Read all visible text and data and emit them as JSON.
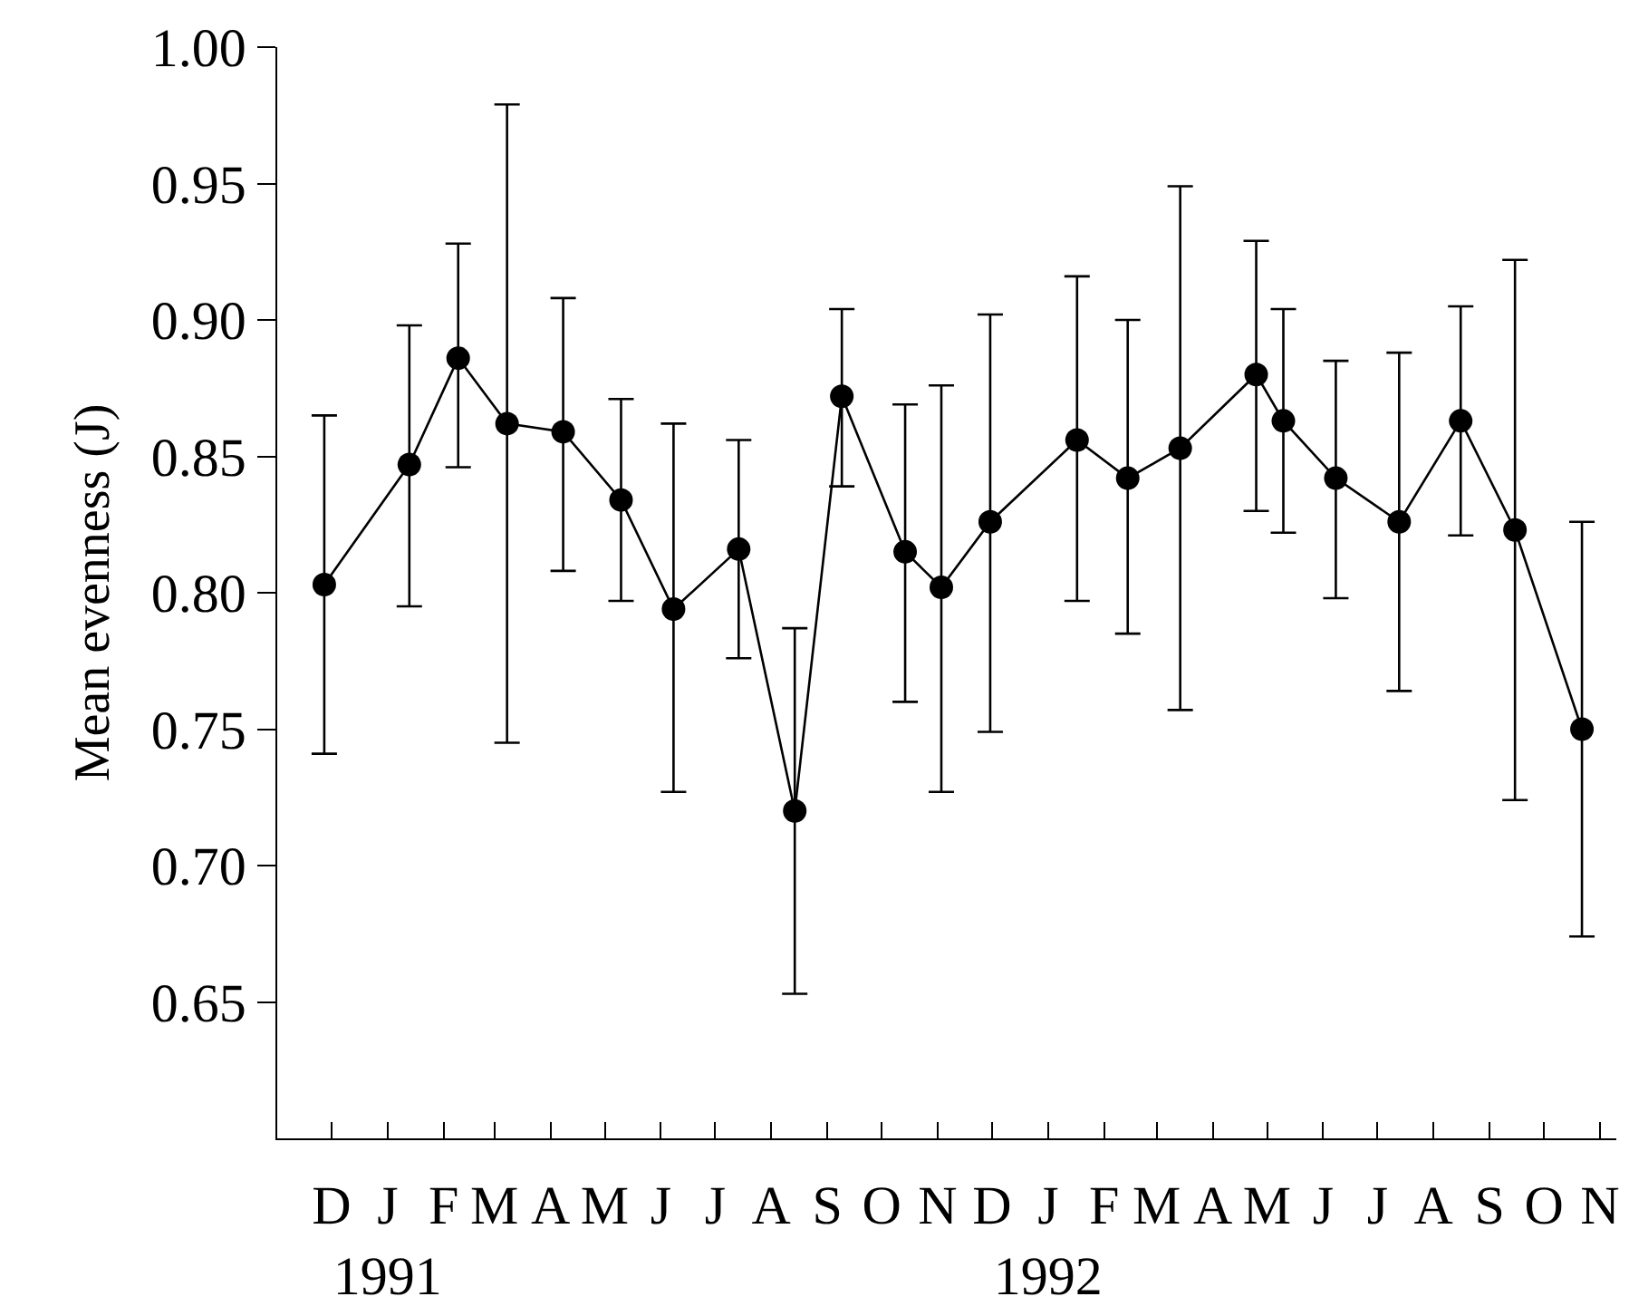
{
  "chart_data": {
    "type": "line",
    "ylabel": "Mean evenness (J)",
    "x": [
      "1990-11-27",
      "1991-01-13",
      "1991-02-09",
      "1991-03-08",
      "1991-04-08",
      "1991-05-10",
      "1991-06-08",
      "1991-07-14",
      "1991-08-14",
      "1991-09-09",
      "1991-10-14",
      "1991-11-03",
      "1991-11-30",
      "1992-01-17",
      "1992-02-14",
      "1992-03-14",
      "1992-04-25",
      "1992-05-10",
      "1992-06-08",
      "1992-07-13",
      "1992-08-16",
      "1992-09-15",
      "1992-10-22"
    ],
    "series": [
      {
        "color": "#000000",
        "values": [
          0.803,
          0.847,
          0.886,
          0.862,
          0.859,
          0.834,
          0.794,
          0.816,
          0.72,
          0.872,
          0.815,
          0.802,
          0.826,
          0.856,
          0.842,
          0.853,
          0.88,
          0.863,
          0.842,
          0.826,
          0.863,
          0.823,
          0.75
        ],
        "errors": [
          [
            0.741,
            0.865
          ],
          [
            0.795,
            0.898
          ],
          [
            0.846,
            0.928
          ],
          [
            0.745,
            0.979
          ],
          [
            0.808,
            0.908
          ],
          [
            0.797,
            0.871
          ],
          [
            0.727,
            0.862
          ],
          [
            0.776,
            0.856
          ],
          [
            0.653,
            0.787
          ],
          [
            0.839,
            0.904
          ],
          [
            0.76,
            0.869
          ],
          [
            0.727,
            0.876
          ],
          [
            0.749,
            0.902
          ],
          [
            0.797,
            0.916
          ],
          [
            0.785,
            0.9
          ],
          [
            0.757,
            0.949
          ],
          [
            0.83,
            0.929
          ],
          [
            0.822,
            0.904
          ],
          [
            0.798,
            0.885
          ],
          [
            0.764,
            0.888
          ],
          [
            0.821,
            0.905
          ],
          [
            0.724,
            0.922
          ],
          [
            0.674,
            0.826
          ]
        ]
      }
    ],
    "xlim": [
      "1990-11-01",
      "1992-11-10"
    ],
    "xticks": [
      {
        "value": "1990-12-01",
        "label": "D"
      },
      {
        "value": "1991-01-01",
        "label": "J\n1991"
      },
      {
        "value": "1991-02-01",
        "label": "F"
      },
      {
        "value": "1991-03-01",
        "label": "M"
      },
      {
        "value": "1991-04-01",
        "label": "A"
      },
      {
        "value": "1991-05-01",
        "label": "M"
      },
      {
        "value": "1991-06-01",
        "label": "J"
      },
      {
        "value": "1991-07-01",
        "label": "J"
      },
      {
        "value": "1991-08-01",
        "label": "A"
      },
      {
        "value": "1991-09-01",
        "label": "S"
      },
      {
        "value": "1991-10-01",
        "label": "O"
      },
      {
        "value": "1991-11-01",
        "label": "N"
      },
      {
        "value": "1991-12-01",
        "label": "D"
      },
      {
        "value": "1992-01-01",
        "label": "J\n1992"
      },
      {
        "value": "1992-02-01",
        "label": "F"
      },
      {
        "value": "1992-03-01",
        "label": "M"
      },
      {
        "value": "1992-04-01",
        "label": "A"
      },
      {
        "value": "1992-05-01",
        "label": "M"
      },
      {
        "value": "1992-06-01",
        "label": "J"
      },
      {
        "value": "1992-07-01",
        "label": "J"
      },
      {
        "value": "1992-08-01",
        "label": "A"
      },
      {
        "value": "1992-09-01",
        "label": "S"
      },
      {
        "value": "1992-10-01",
        "label": "O"
      },
      {
        "value": "1992-11-01",
        "label": "N"
      }
    ],
    "ylim": [
      0.6,
      1.0
    ],
    "yticks": [
      {
        "value": 0.65,
        "label": "0.65"
      },
      {
        "value": 0.7,
        "label": "0.70"
      },
      {
        "value": 0.75,
        "label": "0.75"
      },
      {
        "value": 0.8,
        "label": "0.80"
      },
      {
        "value": 0.85,
        "label": "0.85"
      },
      {
        "value": 0.9,
        "label": "0.90"
      },
      {
        "value": 0.95,
        "label": "0.95"
      },
      {
        "value": 1.0,
        "label": "1.00"
      }
    ],
    "marker": "circle",
    "line_style": "solid"
  }
}
